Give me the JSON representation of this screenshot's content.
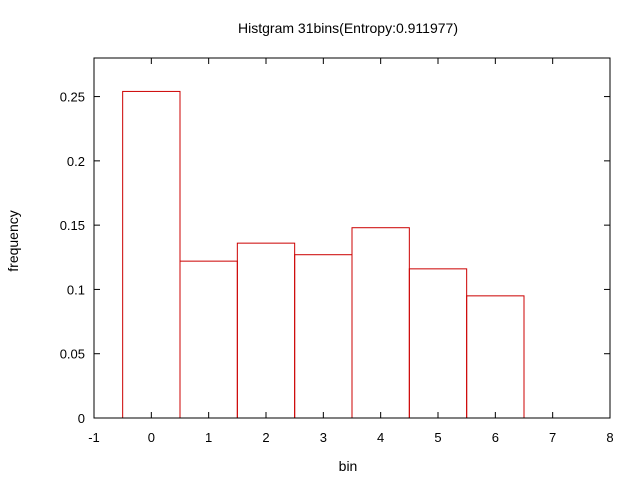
{
  "chart_data": {
    "type": "bar",
    "title": "Histgram 31bins(Entropy:0.911977)",
    "xlabel": "bin",
    "ylabel": "frequency",
    "xlim": [
      -1,
      8
    ],
    "ylim": [
      0,
      0.28
    ],
    "x_ticks": [
      "-1",
      "0",
      "1",
      "2",
      "3",
      "4",
      "5",
      "6",
      "7",
      "8"
    ],
    "y_ticks": [
      "0",
      "0.05",
      "0.1",
      "0.15",
      "0.2",
      "0.25"
    ],
    "y_tick_values": [
      0,
      0.05,
      0.1,
      0.15,
      0.2,
      0.25
    ],
    "x_tick_values": [
      -1,
      0,
      1,
      2,
      3,
      4,
      5,
      6,
      7,
      8
    ],
    "bins": [
      0,
      1,
      2,
      3,
      4,
      5,
      6
    ],
    "values": [
      0.254,
      0.122,
      0.136,
      0.127,
      0.148,
      0.116,
      0.095
    ],
    "bar_width": 1,
    "bar_color": "#cc0000",
    "grid": false,
    "legend": "none"
  }
}
